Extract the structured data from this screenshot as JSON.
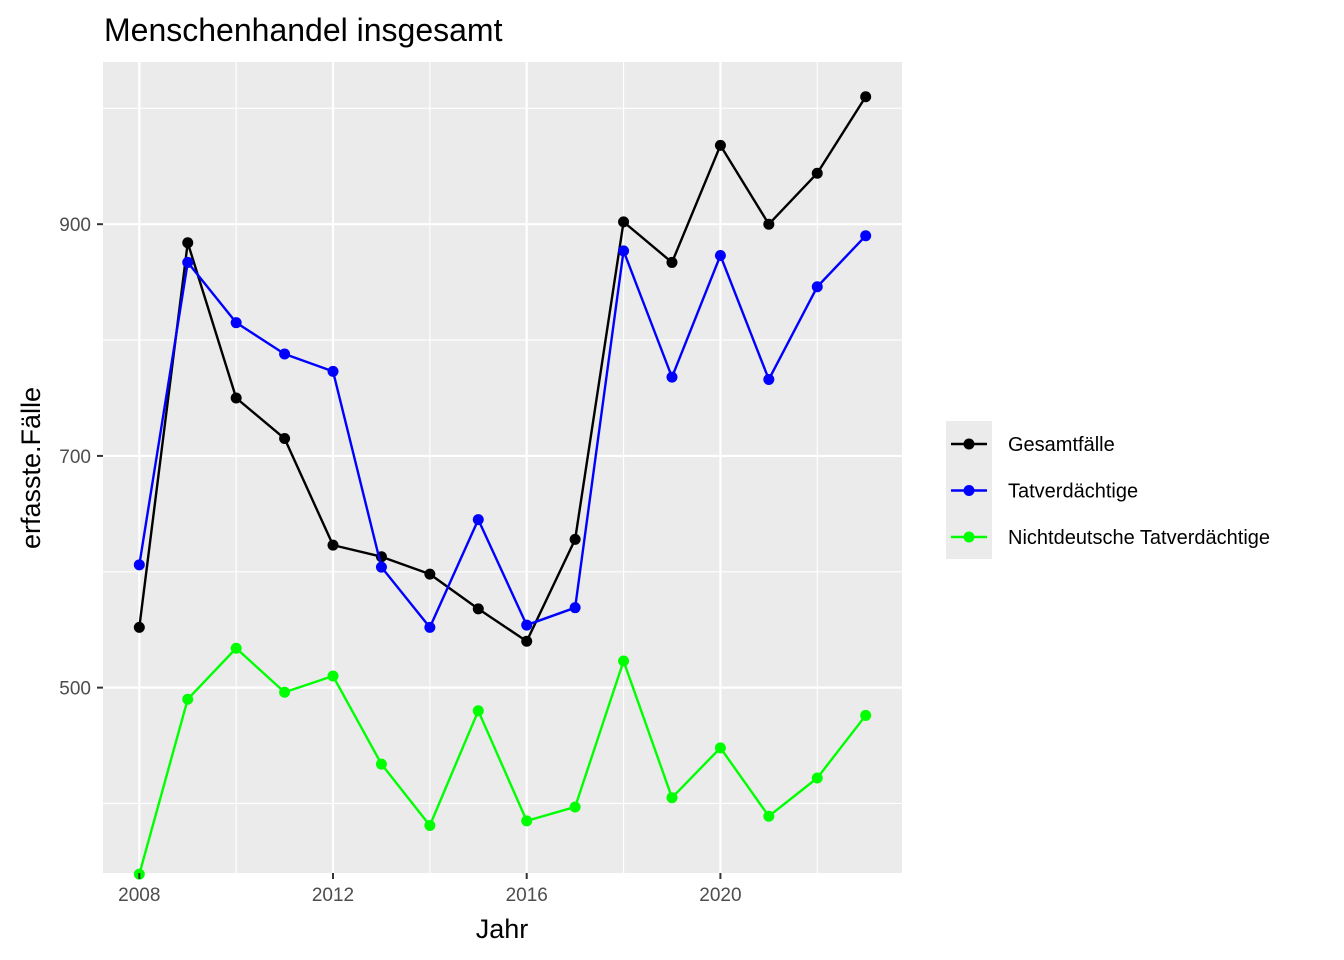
{
  "chart_data": {
    "type": "line",
    "title": "Menschenhandel insgesamt",
    "xlabel": "Jahr",
    "ylabel": "erfasste.Fälle",
    "x": [
      2008,
      2009,
      2010,
      2011,
      2012,
      2013,
      2014,
      2015,
      2016,
      2017,
      2018,
      2019,
      2020,
      2021,
      2022,
      2023
    ],
    "xlim": [
      2007.25,
      2023.75
    ],
    "ylim": [
      340,
      1040
    ],
    "x_ticks": [
      2008,
      2012,
      2016,
      2020
    ],
    "x_tick_labels": [
      "2008",
      "2012",
      "2016",
      "2020"
    ],
    "y_ticks": [
      500,
      700,
      900
    ],
    "y_tick_labels": [
      "500",
      "700",
      "900"
    ],
    "grid": true,
    "legend_position": "right",
    "series": [
      {
        "name": "Gesamtfälle",
        "color": "#000000",
        "values": [
          552,
          884,
          750,
          715,
          623,
          613,
          598,
          568,
          540,
          628,
          902,
          867,
          968,
          900,
          944,
          1010
        ]
      },
      {
        "name": "Tatverdächtige",
        "color": "#0000ff",
        "values": [
          606,
          867,
          815,
          788,
          773,
          604,
          552,
          645,
          554,
          569,
          877,
          768,
          873,
          766,
          846,
          890
        ]
      },
      {
        "name": "Nichtdeutsche Tatverdächtige",
        "color": "#00ff00",
        "values": [
          339,
          490,
          534,
          496,
          510,
          434,
          381,
          480,
          385,
          397,
          523,
          405,
          448,
          389,
          422,
          476
        ]
      }
    ]
  }
}
